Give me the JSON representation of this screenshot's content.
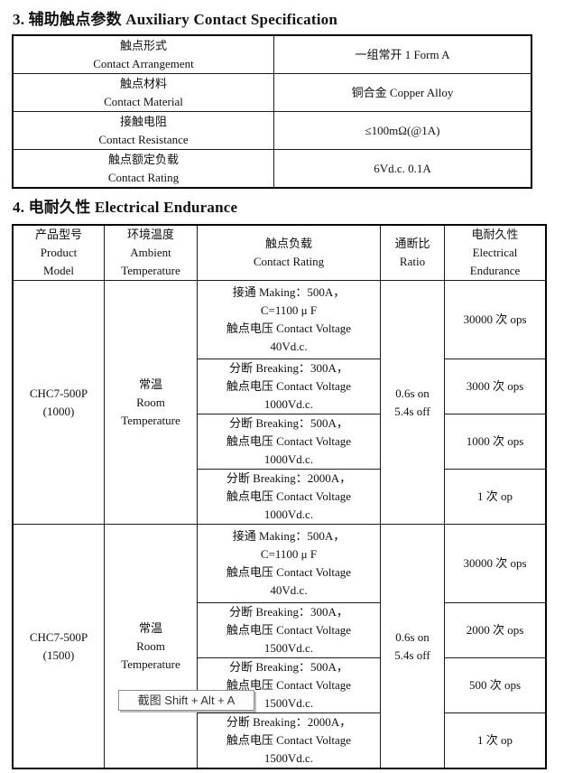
{
  "section3": {
    "title": "3. 辅助触点参数 Auxiliary Contact Specification",
    "rows": [
      {
        "label_zh": "触点形式",
        "label_en": "Contact Arrangement",
        "value": "一组常开  1 Form A"
      },
      {
        "label_zh": "触点材料",
        "label_en": "Contact Material",
        "value": "铜合金  Copper Alloy"
      },
      {
        "label_zh": "接触电阻",
        "label_en": "Contact Resistance",
        "value": "≤100mΩ(@1A)"
      },
      {
        "label_zh": "触点额定负载",
        "label_en": "Contact Rating",
        "value": "6Vd.c. 0.1A"
      }
    ]
  },
  "section4": {
    "title": "4. 电耐久性 Electrical Endurance",
    "header": {
      "model": [
        "产品型号",
        "Product",
        "Model"
      ],
      "temperature": [
        "环境温度",
        "Ambient",
        "Temperature"
      ],
      "rating": [
        "触点负载",
        "Contact Rating"
      ],
      "ratio": [
        "通断比",
        "Ratio"
      ],
      "endurance": [
        "电耐久性",
        "Electrical",
        "Endurance"
      ]
    },
    "groups": [
      {
        "model": [
          "CHC7-500P",
          "(1000)"
        ],
        "temperature": [
          "常温",
          "Room",
          "Temperature"
        ],
        "ratio": [
          "0.6s on",
          "5.4s off"
        ],
        "rows": [
          {
            "load": [
              "接通 Making：500A，",
              "C=1100 μ F",
              "触点电压 Contact Voltage",
              "40Vd.c."
            ],
            "endurance": "30000 次 ops"
          },
          {
            "load": [
              "分断 Breaking：300A，",
              "触点电压 Contact Voltage",
              "1000Vd.c."
            ],
            "endurance": "3000 次 ops"
          },
          {
            "load": [
              "分断 Breaking：500A，",
              "触点电压 Contact Voltage",
              "1000Vd.c."
            ],
            "endurance": "1000 次 ops"
          },
          {
            "load": [
              "分断 Breaking：2000A，",
              "触点电压 Contact Voltage",
              "1000Vd.c."
            ],
            "endurance": "1 次 op"
          }
        ]
      },
      {
        "model": [
          "CHC7-500P",
          "(1500)"
        ],
        "temperature": [
          "常温",
          "Room",
          "Temperature"
        ],
        "ratio": [
          "0.6s on",
          "5.4s off"
        ],
        "rows": [
          {
            "load": [
              "接通 Making：500A，",
              "C=1100 μ F",
              "触点电压 Contact Voltage",
              "40Vd.c."
            ],
            "endurance": "30000 次 ops"
          },
          {
            "load": [
              "分断 Breaking：300A，",
              "触点电压 Contact Voltage",
              "1500Vd.c."
            ],
            "endurance": "2000 次 ops"
          },
          {
            "load": [
              "分断 Breaking：500A，",
              "触点电压 Contact Voltage",
              "1500Vd.c."
            ],
            "endurance": "500 次 ops"
          },
          {
            "load": [
              "分断 Breaking：2000A，",
              "触点电压 Contact Voltage",
              "1500Vd.c."
            ],
            "endurance": "1 次 op"
          }
        ]
      }
    ]
  },
  "tooltip": {
    "text": "截图 Shift + Alt + A"
  }
}
